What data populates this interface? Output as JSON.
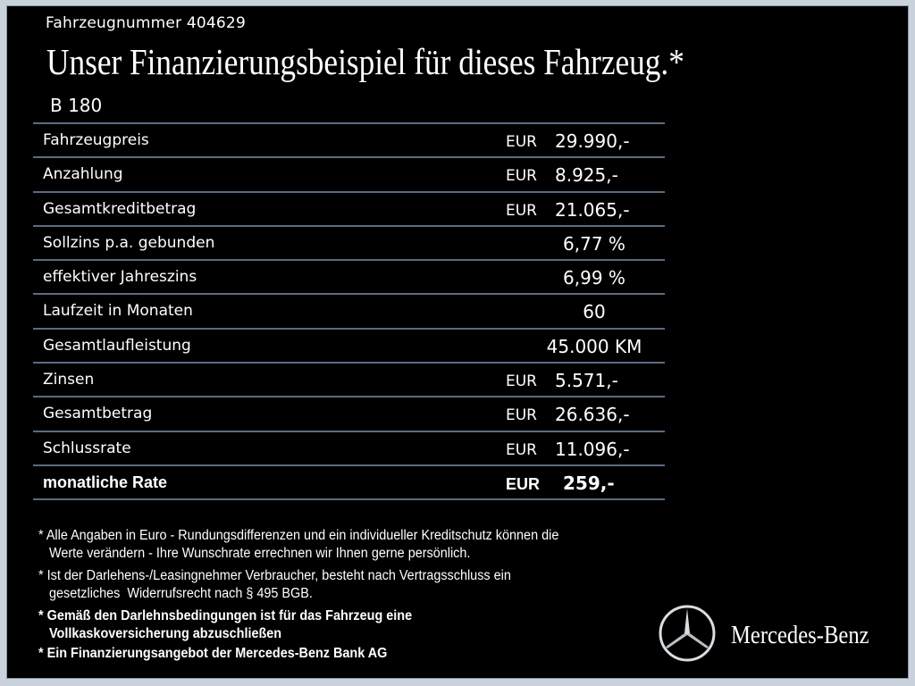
{
  "vehicle_number_label": "Fahrzeugnummer  404629",
  "title": "Unser Finanzierungsbeispiel für dieses Fahrzeug.*",
  "model": "B 180",
  "rows": [
    {
      "label": "Fahrzeugpreis",
      "currency": "EUR",
      "value": "29.990,-"
    },
    {
      "label": "Anzahlung",
      "currency": "EUR",
      "value": "8.925,-"
    },
    {
      "label": "Gesamtkreditbetrag",
      "currency": "EUR",
      "value": "21.065,-"
    },
    {
      "label": "Sollzins p.a. gebunden",
      "value": "6,77 %"
    },
    {
      "label": "effektiver Jahreszins",
      "value": "6,99 %"
    },
    {
      "label": "Laufzeit in Monaten",
      "value": "60"
    },
    {
      "label": "Gesamtlaufleistung",
      "value": "45.000 KM"
    },
    {
      "label": "Zinsen",
      "currency": "EUR",
      "value": "5.571,-"
    },
    {
      "label": "Gesamtbetrag",
      "currency": "EUR",
      "value": "26.636,-"
    },
    {
      "label": "Schlussrate",
      "currency": "EUR",
      "value": "11.096,-"
    },
    {
      "label": "monatliche Rate",
      "currency": "EUR",
      "value": "259,-"
    }
  ],
  "notes": [
    "* Alle Angaben in Euro - Rundungsdifferenzen und ein individueller Kreditschutz können die\n   Werte verändern - Ihre Wunschrate errechnen wir Ihnen gerne persönlich.",
    "* Ist der Darlehens-/Leasingnehmer Verbraucher, besteht nach Vertragsschluss ein\n   gesetzliches  Widerrufsrecht nach § 495 BGB.",
    "* Gemäß den Darlehnsbedingungen ist für das Fahrzeug eine\n   Vollkaskoversicherung abzuschließen",
    "* Ein Finanzierungsangebot der Mercedes-Benz Bank AG"
  ],
  "brand": "Mercedes-Benz",
  "colors": {
    "background": "#000000",
    "frame": "#c9d2dc",
    "divider": "#5b6b80",
    "text": "#ffffff"
  }
}
